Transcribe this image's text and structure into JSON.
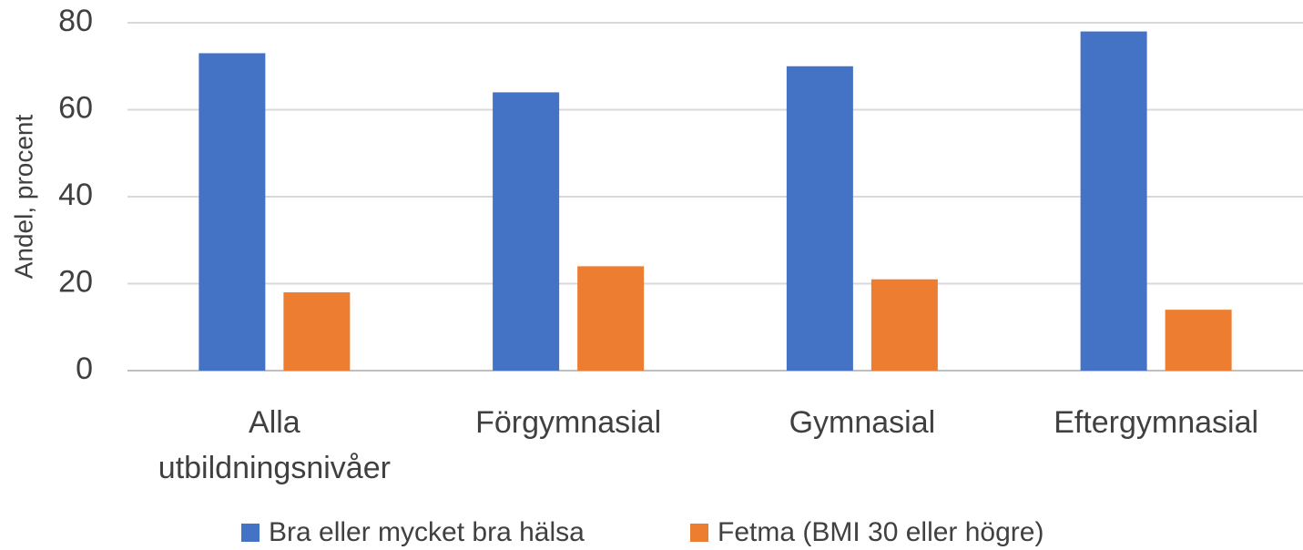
{
  "chart_data": {
    "type": "bar",
    "y_label": "Andel, procent",
    "categories": [
      "Alla utbildningsnivåer",
      "Förgymnasial",
      "Gymnasial",
      "Eftergymnasial"
    ],
    "series": [
      {
        "name": "Bra eller mycket bra hälsa",
        "color": "#4472c4",
        "values": [
          73,
          64,
          70,
          78
        ]
      },
      {
        "name": "Fetma (BMI 30 eller högre)",
        "color": "#ed7d31",
        "values": [
          18,
          24,
          21,
          14
        ]
      }
    ],
    "ylim": [
      0,
      80
    ],
    "yticks": [
      0,
      20,
      40,
      60,
      80
    ],
    "grid": true,
    "legend": "bottom"
  }
}
